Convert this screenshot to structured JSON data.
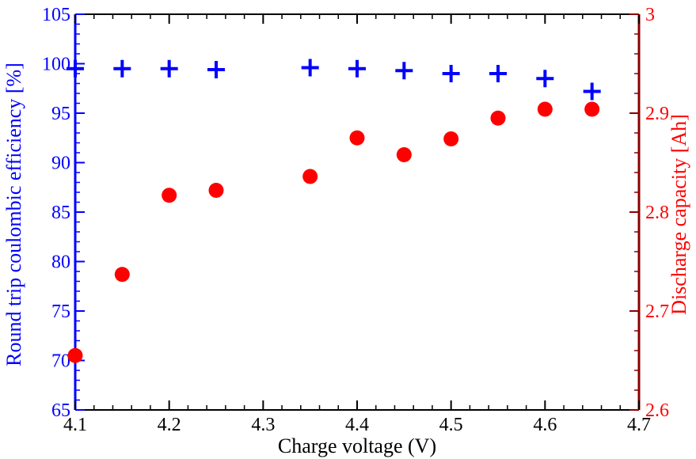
{
  "chart_data": {
    "type": "scatter",
    "xlabel": "Charge voltage (V)",
    "ylabel_left": "Round trip coulombic efficiency [%]",
    "ylabel_right": "Discharge capacity [Ah]",
    "xlim": [
      4.1,
      4.7
    ],
    "ylim_left": [
      65,
      105
    ],
    "ylim_right": [
      2.6,
      3.0
    ],
    "x_ticks": [
      "4.1",
      "4.2",
      "4.3",
      "4.4",
      "4.5",
      "4.6",
      "4.7"
    ],
    "y_left_ticks": [
      "65",
      "70",
      "75",
      "80",
      "85",
      "90",
      "95",
      "100",
      "105"
    ],
    "y_right_ticks": [
      "2.6",
      "2.7",
      "2.8",
      "2.9",
      "3"
    ],
    "grid": false,
    "colors": {
      "left": "#0000ff",
      "right": "#ff0000",
      "right_axis": "#8b0000",
      "frame": "#000000"
    },
    "series": [
      {
        "axis": "left",
        "marker": "plus",
        "x": [
          4.1,
          4.15,
          4.2,
          4.25,
          4.35,
          4.4,
          4.45,
          4.5,
          4.55,
          4.6,
          4.65
        ],
        "values": [
          99.5,
          99.5,
          99.5,
          99.4,
          99.6,
          99.5,
          99.3,
          99.0,
          99.0,
          98.5,
          97.2
        ]
      },
      {
        "axis": "right",
        "marker": "circle",
        "x": [
          4.1,
          4.15,
          4.2,
          4.25,
          4.35,
          4.4,
          4.45,
          4.5,
          4.55,
          4.6,
          4.65
        ],
        "values": [
          2.655,
          2.737,
          2.817,
          2.822,
          2.836,
          2.875,
          2.858,
          2.874,
          2.895,
          2.904,
          2.904
        ]
      }
    ]
  }
}
